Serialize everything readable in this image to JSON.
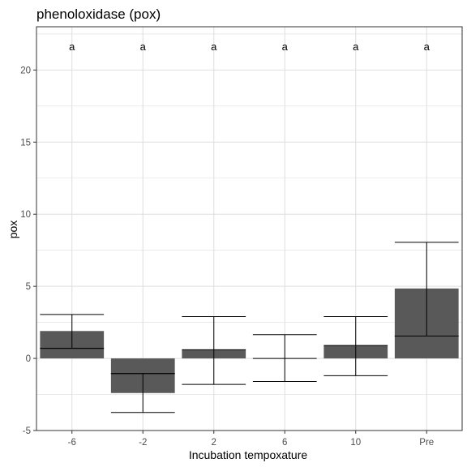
{
  "chart_data": {
    "type": "bar",
    "title": "phenoloxidase (pox)",
    "xlabel": "Incubation tempoxature",
    "ylabel": "pox",
    "categories": [
      "-6",
      "-2",
      "2",
      "6",
      "10",
      "Pre"
    ],
    "values": [
      1.9,
      -2.4,
      0.6,
      0.0,
      0.9,
      4.85
    ],
    "center_line": [
      0.7,
      -1.05,
      0.6,
      0.0,
      0.9,
      1.55
    ],
    "error_upper": [
      3.05,
      -1.05,
      2.9,
      1.65,
      2.9,
      8.05
    ],
    "error_lower": [
      0.7,
      -3.75,
      -1.8,
      -1.6,
      -1.2,
      1.55
    ],
    "letters": [
      "a",
      "a",
      "a",
      "a",
      "a",
      "a"
    ],
    "ylim": [
      -5,
      23.0
    ],
    "yticks": [
      -5,
      0,
      5,
      10,
      15,
      20
    ],
    "grid": true,
    "legend": "none",
    "colors": {
      "bar": "#595959",
      "grid": "#dedede",
      "panel_border": "#333333"
    }
  }
}
